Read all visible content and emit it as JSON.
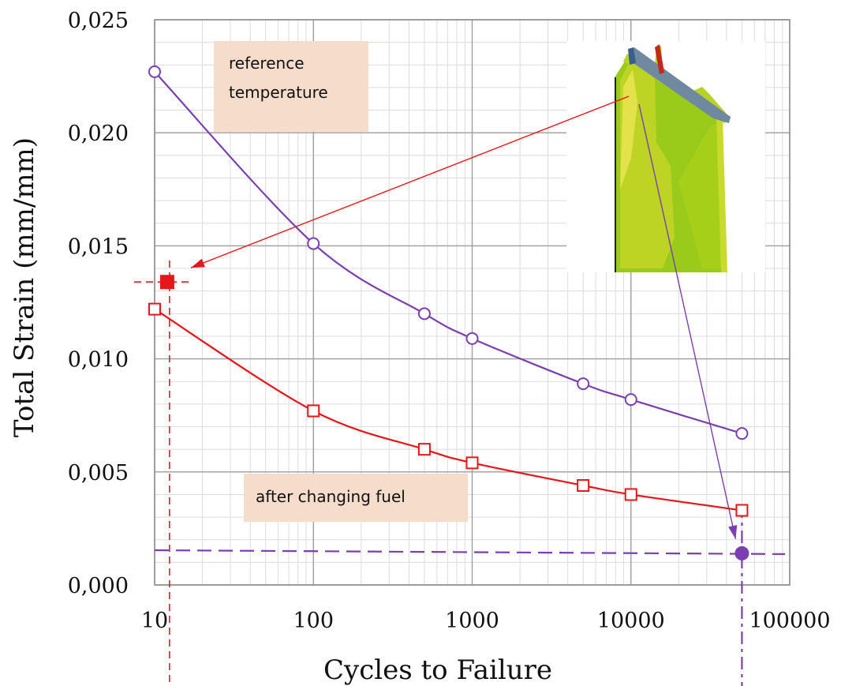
{
  "chart_data": {
    "type": "line",
    "xlabel": "Cycles to Failure",
    "ylabel": "Total Strain (mm/mm)",
    "x_scale": "log",
    "xlim": [
      10,
      100000
    ],
    "ylim": [
      0,
      0.025
    ],
    "x_ticks": [
      "10",
      "100",
      "1000",
      "10000",
      "100000"
    ],
    "y_ticks": [
      "0,000",
      "0,005",
      "0,010",
      "0,015",
      "0,020",
      "0,025"
    ],
    "grid": true,
    "series": [
      {
        "color": "#7a3fb0",
        "marker": "open-circle",
        "points": [
          {
            "x": 10,
            "y": 0.0227
          },
          {
            "x": 100,
            "y": 0.0151
          },
          {
            "x": 500,
            "y": 0.012
          },
          {
            "x": 1000,
            "y": 0.0109
          },
          {
            "x": 5000,
            "y": 0.0089
          },
          {
            "x": 10000,
            "y": 0.0082
          },
          {
            "x": 50000,
            "y": 0.0067
          }
        ]
      },
      {
        "color": "#e8161b",
        "marker": "open-square",
        "points": [
          {
            "x": 10,
            "y": 0.0122
          },
          {
            "x": 100,
            "y": 0.0077
          },
          {
            "x": 500,
            "y": 0.006
          },
          {
            "x": 1000,
            "y": 0.0054
          },
          {
            "x": 5000,
            "y": 0.0044
          },
          {
            "x": 10000,
            "y": 0.004
          },
          {
            "x": 50000,
            "y": 0.0033
          }
        ]
      }
    ],
    "highlight_points": [
      {
        "x": 12,
        "y": 0.0134,
        "color": "#e8161b",
        "marker": "filled-square"
      },
      {
        "x": 50000,
        "y": 0.0014,
        "color": "#7a3fb0",
        "marker": "filled-circle"
      }
    ],
    "annotations": [
      {
        "lines": [
          "reference",
          "temperature"
        ]
      },
      {
        "lines": [
          "after changing fuel"
        ]
      }
    ]
  }
}
